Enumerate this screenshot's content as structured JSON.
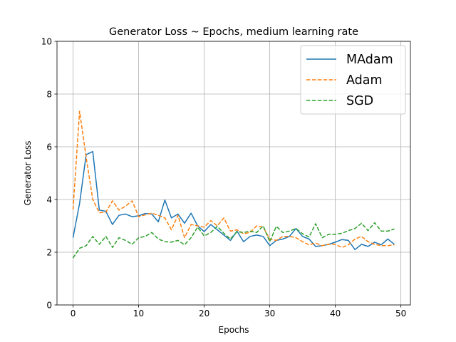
{
  "chart_data": {
    "type": "line",
    "title": "Generator Loss ~ Epochs, medium learning rate",
    "xlabel": "Epochs",
    "ylabel": "Generator Loss",
    "xlim": [
      -2.45,
      51.45
    ],
    "ylim": [
      0,
      10
    ],
    "xticks": [
      0,
      10,
      20,
      30,
      40,
      50
    ],
    "yticks": [
      0,
      2,
      4,
      6,
      8,
      10
    ],
    "grid": true,
    "legend_position": "top-right",
    "x": [
      0,
      1,
      2,
      3,
      4,
      5,
      6,
      7,
      8,
      9,
      10,
      11,
      12,
      13,
      14,
      15,
      16,
      17,
      18,
      19,
      20,
      21,
      22,
      23,
      24,
      25,
      26,
      27,
      28,
      29,
      30,
      31,
      32,
      33,
      34,
      35,
      36,
      37,
      38,
      39,
      40,
      41,
      42,
      43,
      44,
      45,
      46,
      47,
      48,
      49
    ],
    "series": [
      {
        "name": "MAdam",
        "color": "#1f77b4",
        "dash": "solid",
        "values": [
          2.55,
          3.85,
          5.7,
          5.82,
          3.6,
          3.55,
          3.05,
          3.4,
          3.45,
          3.35,
          3.38,
          3.47,
          3.45,
          3.15,
          3.98,
          3.3,
          3.45,
          3.1,
          3.48,
          3.0,
          2.78,
          3.05,
          2.85,
          2.65,
          2.45,
          2.8,
          2.4,
          2.6,
          2.65,
          2.6,
          2.25,
          2.45,
          2.5,
          2.6,
          2.9,
          2.6,
          2.5,
          2.22,
          2.25,
          2.3,
          2.38,
          2.48,
          2.45,
          2.1,
          2.3,
          2.22,
          2.38,
          2.28,
          2.5,
          2.3
        ]
      },
      {
        "name": "Adam",
        "color": "#ff7f0e",
        "dash": "dashed",
        "values": [
          3.62,
          7.35,
          5.6,
          4.0,
          3.5,
          3.52,
          3.95,
          3.6,
          3.75,
          3.95,
          3.35,
          3.42,
          3.48,
          3.4,
          3.3,
          2.85,
          3.4,
          2.55,
          3.05,
          3.0,
          2.95,
          3.2,
          3.0,
          3.3,
          2.8,
          2.85,
          2.7,
          2.75,
          3.0,
          2.95,
          2.5,
          2.45,
          2.6,
          2.6,
          2.55,
          2.4,
          2.28,
          2.35,
          2.25,
          2.3,
          2.3,
          2.18,
          2.28,
          2.5,
          2.6,
          2.4,
          2.3,
          2.25,
          2.25,
          2.28
        ]
      },
      {
        "name": "SGD",
        "color": "#2ca02c",
        "dash": "dashed",
        "values": [
          1.78,
          2.15,
          2.25,
          2.6,
          2.3,
          2.6,
          2.18,
          2.55,
          2.45,
          2.3,
          2.55,
          2.6,
          2.75,
          2.5,
          2.4,
          2.38,
          2.45,
          2.28,
          2.55,
          2.95,
          2.62,
          2.75,
          2.98,
          2.72,
          2.5,
          2.78,
          2.75,
          2.8,
          2.75,
          3.0,
          2.4,
          2.98,
          2.75,
          2.8,
          2.9,
          2.7,
          2.58,
          3.08,
          2.55,
          2.68,
          2.68,
          2.72,
          2.82,
          2.9,
          3.1,
          2.82,
          3.12,
          2.8,
          2.8,
          2.88
        ]
      }
    ]
  }
}
